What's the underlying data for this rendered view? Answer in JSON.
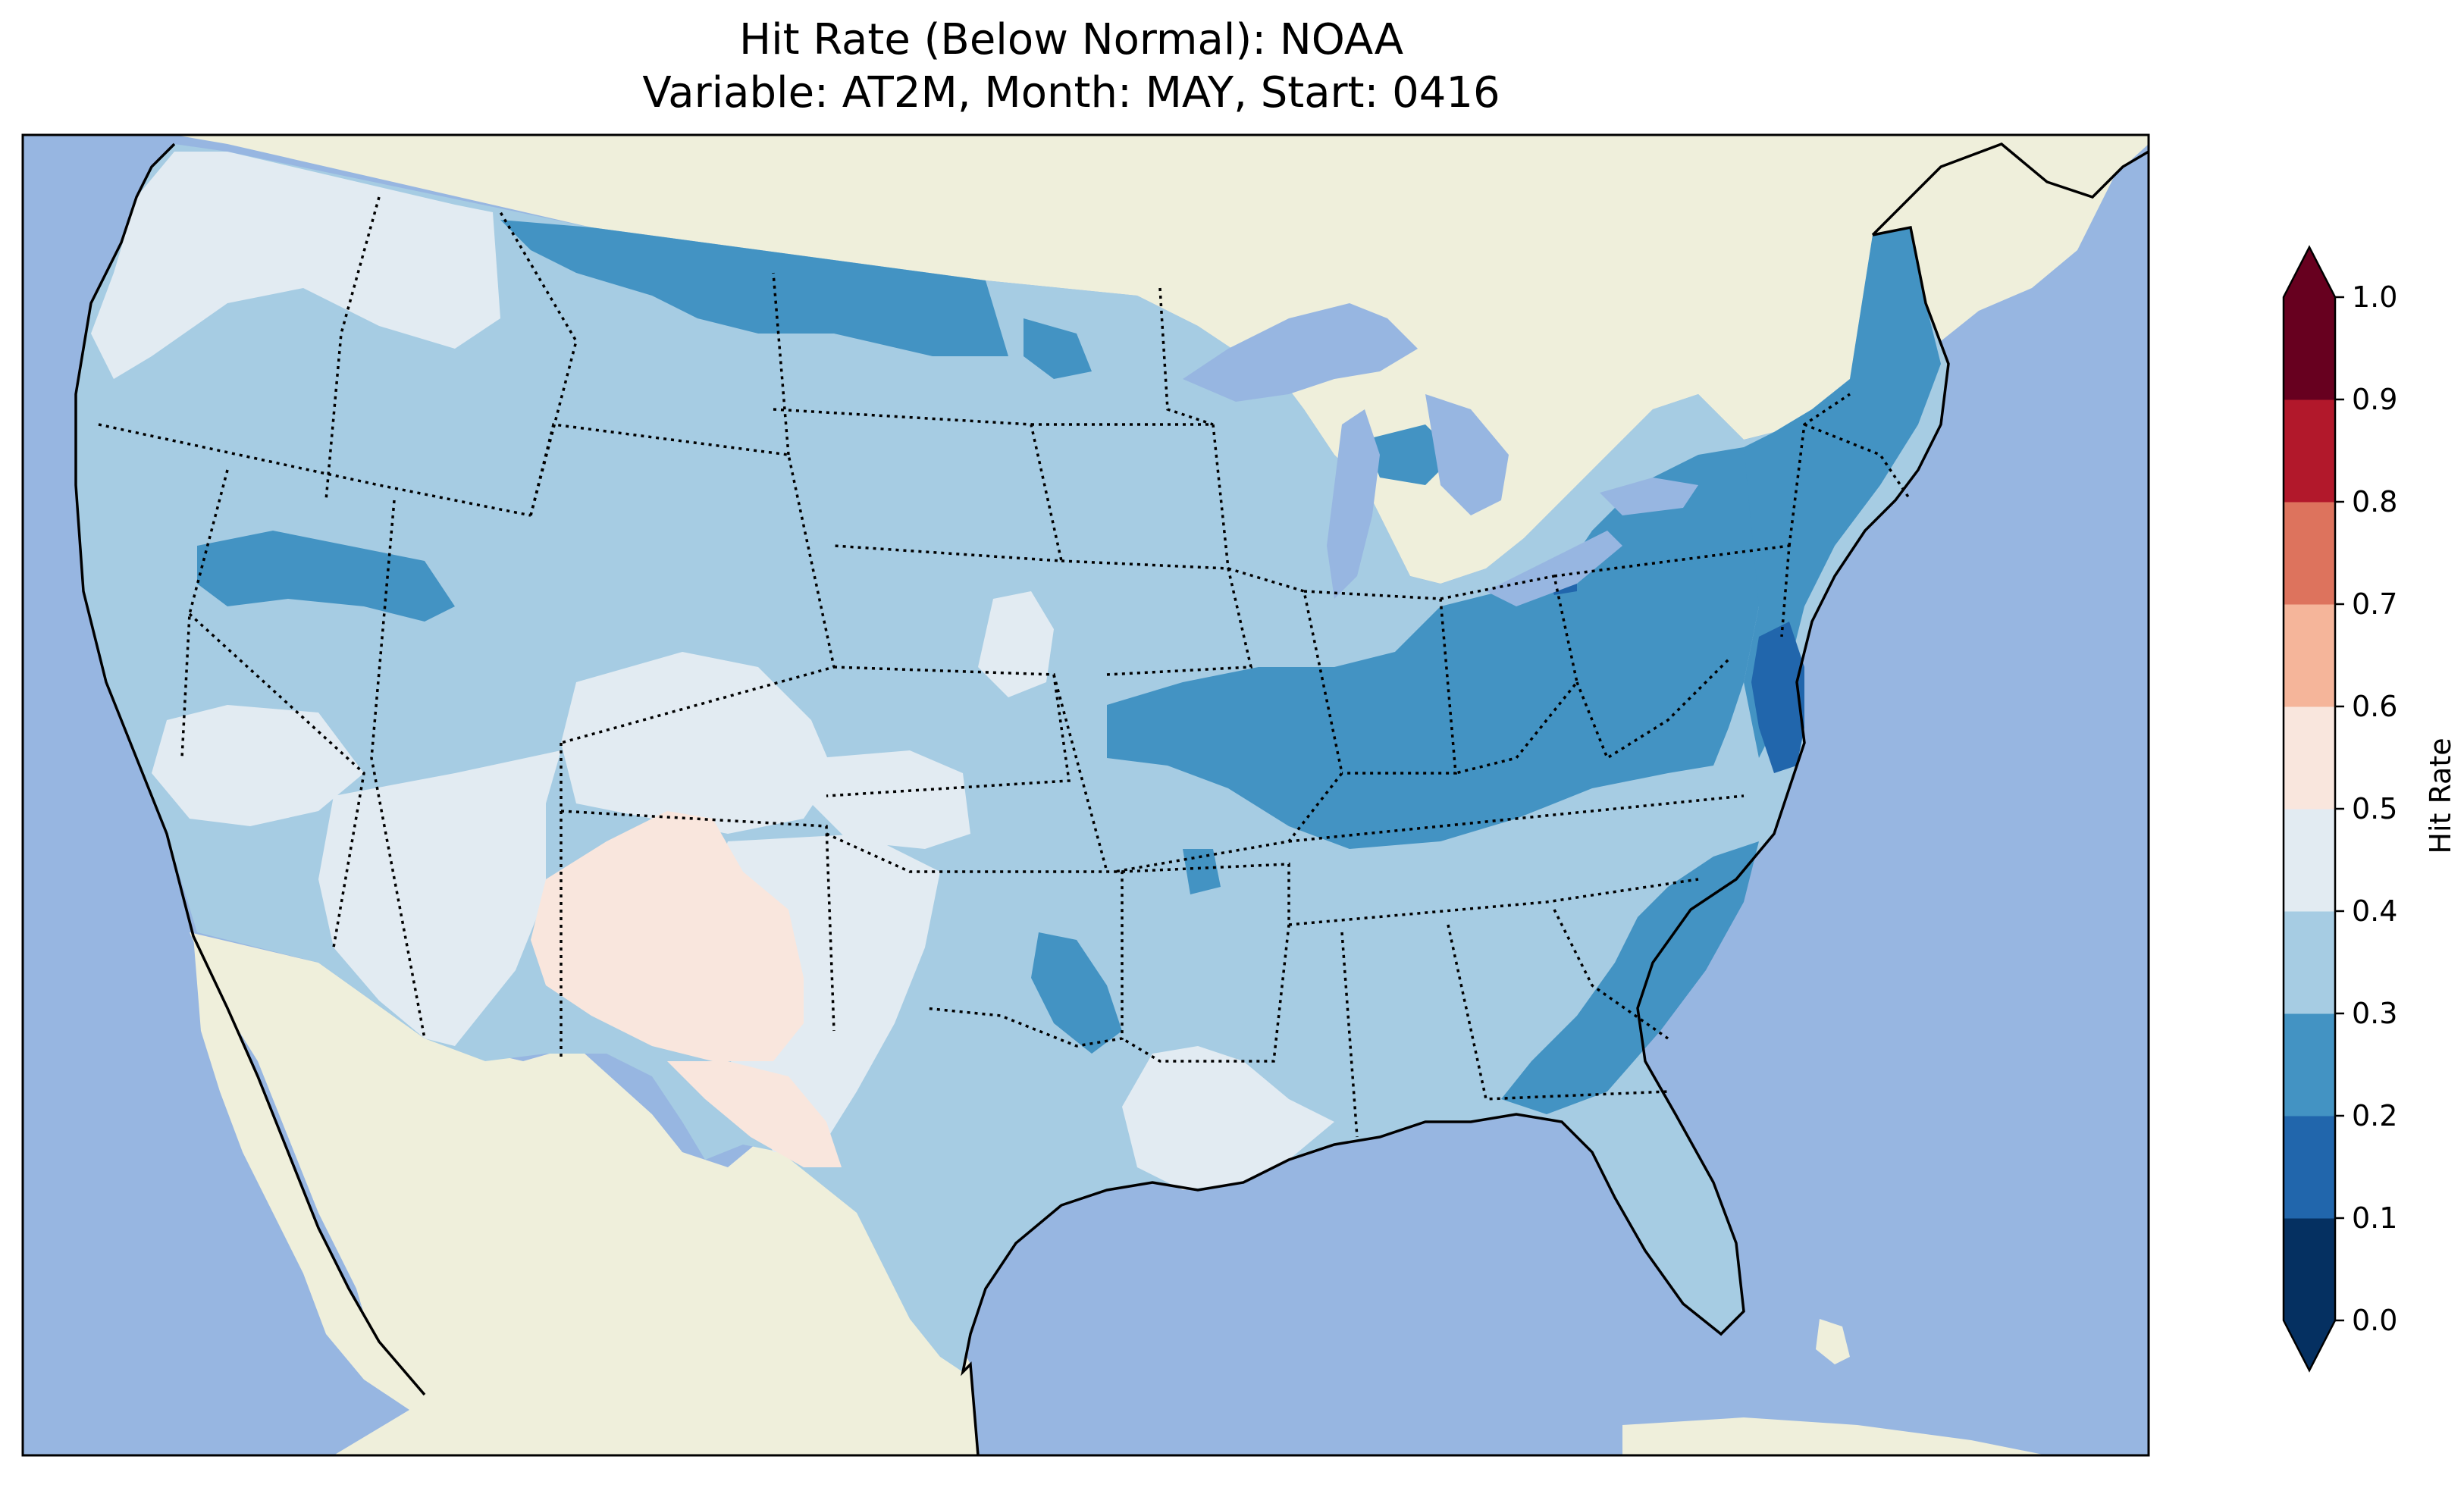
{
  "title": {
    "line1": "Hit Rate (Below Normal): NOAA",
    "line2": "Variable: AT2M, Month: MAY, Start: 0416"
  },
  "map": {
    "ocean_color": "#97b6e1",
    "land_color": "#efefdb",
    "region_shown": "Contiguous United States",
    "contour_palette": "RdBu_r"
  },
  "colorbar": {
    "label": "Hit Rate",
    "ticks": [
      "0.0",
      "0.1",
      "0.2",
      "0.3",
      "0.4",
      "0.5",
      "0.6",
      "0.7",
      "0.8",
      "0.9",
      "1.0"
    ],
    "bins": [
      {
        "range": [
          0.0,
          0.1
        ],
        "color": "#053061"
      },
      {
        "range": [
          0.1,
          0.2
        ],
        "color": "#2166ac"
      },
      {
        "range": [
          0.2,
          0.3
        ],
        "color": "#4393c3"
      },
      {
        "range": [
          0.3,
          0.4
        ],
        "color": "#a6cce3"
      },
      {
        "range": [
          0.4,
          0.5
        ],
        "color": "#e2ebf2"
      },
      {
        "range": [
          0.5,
          0.6
        ],
        "color": "#f9e6dd"
      },
      {
        "range": [
          0.6,
          0.7
        ],
        "color": "#f5b59a"
      },
      {
        "range": [
          0.7,
          0.8
        ],
        "color": "#dd735d"
      },
      {
        "range": [
          0.8,
          0.9
        ],
        "color": "#b2182b"
      },
      {
        "range": [
          0.9,
          1.0
        ],
        "color": "#67001f"
      }
    ],
    "extend": "both"
  }
}
